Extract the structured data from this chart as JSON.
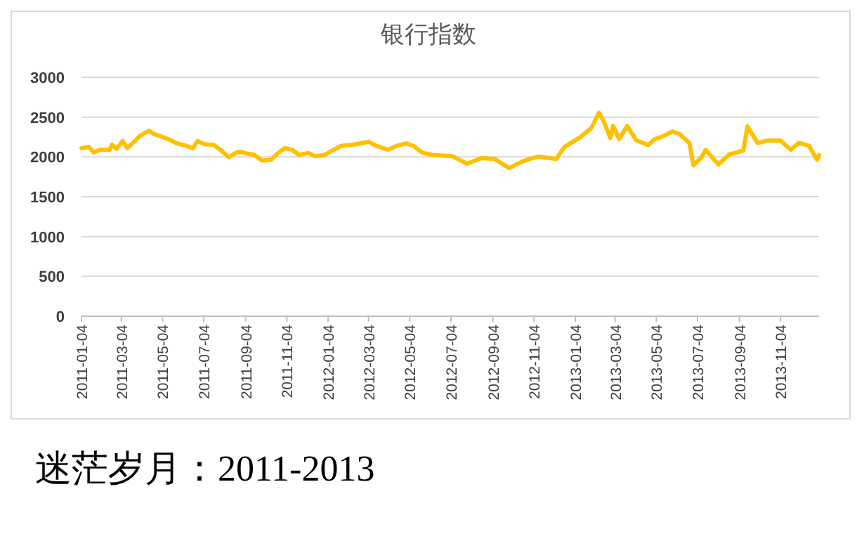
{
  "chart_data": {
    "type": "line",
    "title": "银行指数",
    "annotations": [
      "迷茫岁月：2011-2013"
    ],
    "series": [
      {
        "color": "#ffc000",
        "x": [
          "2011-01-04",
          "2011-01-15",
          "2011-01-22",
          "2011-02-01",
          "2011-02-15",
          "2011-02-18",
          "2011-02-25",
          "2011-03-06",
          "2011-03-13",
          "2011-03-24",
          "2011-03-31",
          "2011-04-14",
          "2011-04-21",
          "2011-05-01",
          "2011-05-15",
          "2011-05-25",
          "2011-06-08",
          "2011-06-18",
          "2011-06-25",
          "2011-07-05",
          "2011-07-19",
          "2011-07-30",
          "2011-08-10",
          "2011-08-20",
          "2011-08-27",
          "2011-09-07",
          "2011-09-17",
          "2011-09-28",
          "2011-10-12",
          "2011-10-22",
          "2011-11-01",
          "2011-11-12",
          "2011-11-22",
          "2011-12-06",
          "2011-12-16",
          "2011-12-30",
          "2012-01-10",
          "2012-01-24",
          "2012-02-07",
          "2012-02-21",
          "2012-03-04",
          "2012-03-15",
          "2012-04-02",
          "2012-04-15",
          "2012-04-29",
          "2012-05-09",
          "2012-05-23",
          "2012-06-07",
          "2012-07-06",
          "2012-07-28",
          "2012-08-18",
          "2012-09-07",
          "2012-09-28",
          "2012-10-18",
          "2012-11-10",
          "2012-12-07",
          "2012-12-19",
          "2013-01-10",
          "2013-01-19",
          "2013-01-28",
          "2013-02-08",
          "2013-02-15",
          "2013-02-25",
          "2013-03-01",
          "2013-03-10",
          "2013-03-22",
          "2013-04-04",
          "2013-04-22",
          "2013-05-01",
          "2013-05-13",
          "2013-05-28",
          "2013-06-07",
          "2013-06-22",
          "2013-06-28",
          "2013-07-10",
          "2013-07-16",
          "2013-08-04",
          "2013-08-20",
          "2013-09-10",
          "2013-09-16",
          "2013-10-01",
          "2013-10-16",
          "2013-11-04",
          "2013-11-19",
          "2013-12-01",
          "2013-12-16",
          "2013-12-28",
          "2013-12-31"
        ],
        "values": [
          2110,
          2125,
          2055,
          2090,
          2090,
          2155,
          2100,
          2200,
          2110,
          2200,
          2260,
          2330,
          2290,
          2260,
          2215,
          2170,
          2140,
          2110,
          2200,
          2160,
          2150,
          2080,
          1995,
          2050,
          2065,
          2040,
          2025,
          1955,
          1965,
          2050,
          2110,
          2090,
          2025,
          2050,
          2010,
          2025,
          2080,
          2140,
          2150,
          2170,
          2190,
          2140,
          2090,
          2140,
          2170,
          2140,
          2050,
          2025,
          2010,
          1915,
          1985,
          1975,
          1860,
          1945,
          2005,
          1975,
          2125,
          2240,
          2300,
          2365,
          2555,
          2450,
          2240,
          2390,
          2225,
          2390,
          2210,
          2150,
          2220,
          2255,
          2320,
          2290,
          2175,
          1895,
          1995,
          2090,
          1905,
          2030,
          2080,
          2385,
          2175,
          2205,
          2205,
          2090,
          2175,
          2140,
          1965,
          2025
        ]
      }
    ],
    "xlim": [
      "2011-01-04",
      "2013-12-31"
    ],
    "xticks": [
      "2011-01-04",
      "2011-03-04",
      "2011-05-04",
      "2011-07-04",
      "2011-09-04",
      "2011-11-04",
      "2012-01-04",
      "2012-03-04",
      "2012-05-04",
      "2012-07-04",
      "2012-09-04",
      "2012-11-04",
      "2013-01-04",
      "2013-03-04",
      "2013-05-04",
      "2013-07-04",
      "2013-09-04",
      "2013-11-04"
    ],
    "ylim": [
      0,
      3000
    ],
    "yticks": [
      0,
      500,
      1000,
      1500,
      2000,
      2500,
      3000
    ],
    "grid": "y"
  }
}
